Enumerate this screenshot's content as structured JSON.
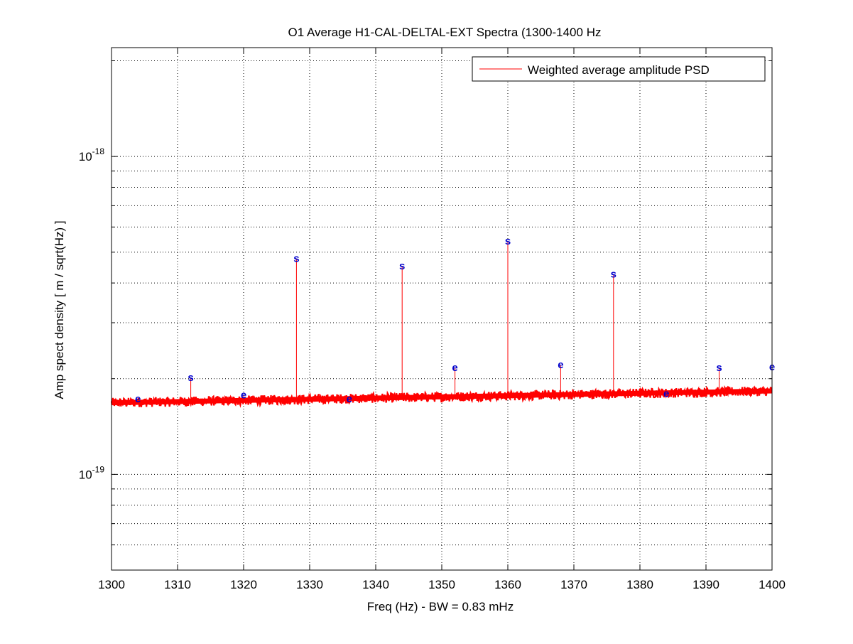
{
  "chart_data": {
    "type": "line",
    "title": "O1 Average H1-CAL-DELTAL-EXT Spectra (1300-1400 Hz",
    "xlabel": "Freq (Hz) - BW = 0.83 mHz",
    "ylabel": "Amp spect density [ m / sqrt(Hz) ]",
    "xlim": [
      1300,
      1400
    ],
    "ylim": [
      5e-20,
      2.2e-18
    ],
    "yscale": "log",
    "grid": true,
    "legend_position": "top-right",
    "x_ticks": [
      1300,
      1310,
      1320,
      1330,
      1340,
      1350,
      1360,
      1370,
      1380,
      1390,
      1400
    ],
    "x_tick_labels": [
      "1300",
      "1310",
      "1320",
      "1330",
      "1340",
      "1350",
      "1360",
      "1370",
      "1380",
      "1390",
      "1400"
    ],
    "y_major_ticks": [
      {
        "value": 1e-19,
        "base": "10",
        "exponent": "-19"
      },
      {
        "value": 1e-18,
        "base": "10",
        "exponent": "-18"
      }
    ],
    "series": [
      {
        "name": "Weighted average amplitude PSD",
        "color": "#ff0000",
        "baseline": {
          "x": [
            1300,
            1400
          ],
          "y": [
            1.68e-19,
            1.83e-19
          ]
        },
        "lines": [
          {
            "x": 1304,
            "y": 1.72e-19
          },
          {
            "x": 1312,
            "y": 2.01e-19
          },
          {
            "x": 1320,
            "y": 1.77e-19
          },
          {
            "x": 1328,
            "y": 4.75e-19
          },
          {
            "x": 1336,
            "y": 1.72e-19
          },
          {
            "x": 1344,
            "y": 4.5e-19
          },
          {
            "x": 1352,
            "y": 2.16e-19
          },
          {
            "x": 1360,
            "y": 5.4e-19
          },
          {
            "x": 1368,
            "y": 2.2e-19
          },
          {
            "x": 1376,
            "y": 4.25e-19
          },
          {
            "x": 1384,
            "y": 1.79e-19
          },
          {
            "x": 1392,
            "y": 2.16e-19
          },
          {
            "x": 1400,
            "y": 2.17e-19
          }
        ]
      }
    ],
    "markers": [
      {
        "x": 1304,
        "y": 1.72e-19,
        "label": "e"
      },
      {
        "x": 1312,
        "y": 2.01e-19,
        "label": "s"
      },
      {
        "x": 1320,
        "y": 1.77e-19,
        "label": "e"
      },
      {
        "x": 1328,
        "y": 4.75e-19,
        "label": "s"
      },
      {
        "x": 1336,
        "y": 1.72e-19,
        "label": "e"
      },
      {
        "x": 1344,
        "y": 4.5e-19,
        "label": "s"
      },
      {
        "x": 1352,
        "y": 2.16e-19,
        "label": "e"
      },
      {
        "x": 1360,
        "y": 5.4e-19,
        "label": "s"
      },
      {
        "x": 1368,
        "y": 2.2e-19,
        "label": "e"
      },
      {
        "x": 1376,
        "y": 4.25e-19,
        "label": "s"
      },
      {
        "x": 1384,
        "y": 1.79e-19,
        "label": "e"
      },
      {
        "x": 1392,
        "y": 2.16e-19,
        "label": "s"
      },
      {
        "x": 1400,
        "y": 2.17e-19,
        "label": "e"
      }
    ],
    "marker_color": "#0000cc",
    "legend": {
      "entry": "Weighted average amplitude PSD"
    }
  }
}
